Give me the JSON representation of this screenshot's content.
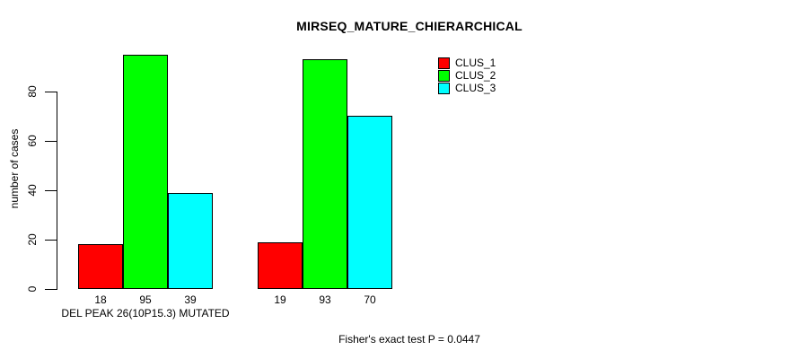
{
  "chart_data": {
    "type": "bar",
    "title": "MIRSEQ_MATURE_CHIERARCHICAL",
    "ylabel": "number of cases",
    "xlabel": "",
    "footnote": "Fisher's exact test P = 0.0447",
    "yticks": [
      0,
      20,
      40,
      60,
      80
    ],
    "ylim": [
      0,
      95
    ],
    "grid": false,
    "legend_position": "right-of-plot",
    "group_labels": [
      "DEL PEAK 26(10P15.3) MUTATED",
      ""
    ],
    "series": [
      {
        "name": "CLUS_1",
        "color": "#ff0000",
        "values": [
          18,
          19
        ]
      },
      {
        "name": "CLUS_2",
        "color": "#00ff00",
        "values": [
          95,
          93
        ]
      },
      {
        "name": "CLUS_3",
        "color": "#00ffff",
        "values": [
          39,
          70
        ]
      }
    ],
    "bar_value_labels": [
      [
        18,
        95,
        39
      ],
      [
        19,
        93,
        70
      ]
    ],
    "axis_color": "#000000",
    "bar_border_color": "#000000",
    "background_color": "#ffffff"
  }
}
